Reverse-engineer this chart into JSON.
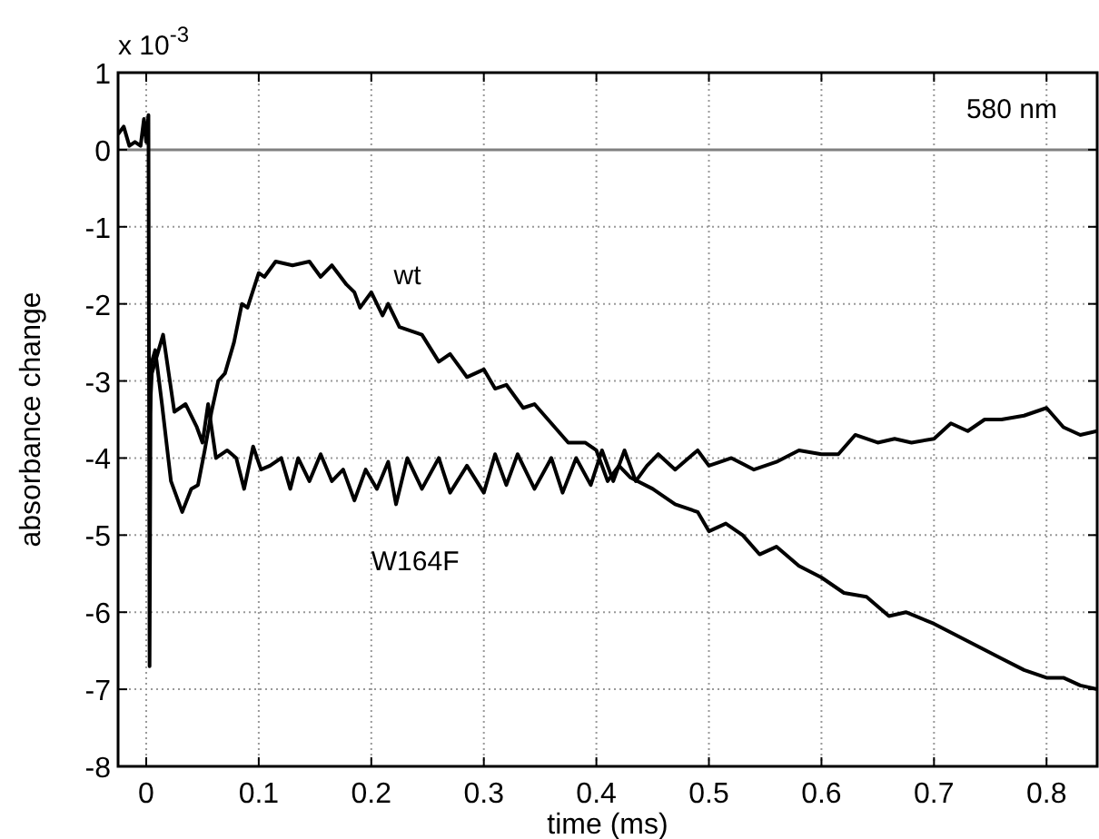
{
  "chart_data": {
    "type": "line",
    "xlabel": "time (ms)",
    "ylabel": "absorbance change",
    "annotations": [
      "x 10$^{-3}$",
      "580 nm"
    ],
    "xlim": [
      -0.025,
      0.845
    ],
    "xticks": [
      0,
      0.1,
      0.2,
      0.3,
      0.4,
      0.5,
      0.6,
      0.7,
      0.8
    ],
    "ylim": [
      -8,
      1
    ],
    "yticks": [
      -8,
      -7,
      -6,
      -5,
      -4,
      -3,
      -2,
      -1,
      0,
      1
    ],
    "grid": true,
    "line_style": "solid",
    "marker": "none",
    "ref_lines": [
      {
        "axis": "y",
        "value": 0,
        "color": "#808080"
      }
    ],
    "series": [
      {
        "name": "wt",
        "color": "#000000",
        "x": [
          -0.025,
          -0.02,
          -0.015,
          -0.01,
          -0.005,
          -0.002,
          0,
          0.002,
          0.003,
          0.004,
          0.008,
          0.014,
          0.022,
          0.032,
          0.04,
          0.046,
          0.052,
          0.058,
          0.064,
          0.07,
          0.078,
          0.085,
          0.09,
          0.1,
          0.105,
          0.115,
          0.13,
          0.145,
          0.155,
          0.165,
          0.178,
          0.185,
          0.19,
          0.2,
          0.21,
          0.215,
          0.225,
          0.235,
          0.245,
          0.26,
          0.27,
          0.285,
          0.3,
          0.31,
          0.32,
          0.335,
          0.345,
          0.36,
          0.375,
          0.39,
          0.4,
          0.41,
          0.42,
          0.43,
          0.45,
          0.47,
          0.49,
          0.5,
          0.515,
          0.53,
          0.545,
          0.56,
          0.58,
          0.6,
          0.62,
          0.64,
          0.66,
          0.675,
          0.7,
          0.72,
          0.74,
          0.76,
          0.78,
          0.8,
          0.815,
          0.83,
          0.845
        ],
        "values": [
          0.2,
          0.3,
          0.05,
          0.1,
          0.05,
          0.4,
          0.1,
          0.45,
          -6.7,
          -2.8,
          -2.6,
          -3.3,
          -4.3,
          -4.7,
          -4.4,
          -4.35,
          -3.9,
          -3.4,
          -3.0,
          -2.9,
          -2.5,
          -2.0,
          -2.05,
          -1.6,
          -1.65,
          -1.45,
          -1.5,
          -1.45,
          -1.65,
          -1.5,
          -1.75,
          -1.85,
          -2.05,
          -1.85,
          -2.15,
          -2.0,
          -2.3,
          -2.35,
          -2.4,
          -2.75,
          -2.65,
          -2.95,
          -2.85,
          -3.1,
          -3.05,
          -3.35,
          -3.3,
          -3.55,
          -3.8,
          -3.8,
          -3.9,
          -4.3,
          -4.1,
          -4.25,
          -4.4,
          -4.6,
          -4.7,
          -4.95,
          -4.85,
          -5.0,
          -5.25,
          -5.15,
          -5.4,
          -5.55,
          -5.75,
          -5.8,
          -6.05,
          -6.0,
          -6.15,
          -6.3,
          -6.45,
          -6.6,
          -6.75,
          -6.85,
          -6.85,
          -6.95,
          -7.0
        ]
      },
      {
        "name": "W164F",
        "color": "#000000",
        "x": [
          0.003,
          0.005,
          0.015,
          0.025,
          0.035,
          0.045,
          0.05,
          0.055,
          0.062,
          0.072,
          0.08,
          0.087,
          0.095,
          0.102,
          0.11,
          0.12,
          0.128,
          0.135,
          0.145,
          0.155,
          0.165,
          0.175,
          0.185,
          0.195,
          0.205,
          0.215,
          0.222,
          0.232,
          0.245,
          0.26,
          0.27,
          0.285,
          0.3,
          0.31,
          0.32,
          0.33,
          0.345,
          0.36,
          0.37,
          0.382,
          0.395,
          0.405,
          0.415,
          0.425,
          0.435,
          0.445,
          0.455,
          0.47,
          0.49,
          0.5,
          0.52,
          0.54,
          0.56,
          0.58,
          0.6,
          0.615,
          0.63,
          0.65,
          0.665,
          0.68,
          0.7,
          0.715,
          0.73,
          0.745,
          0.76,
          0.78,
          0.8,
          0.815,
          0.83,
          0.845
        ],
        "values": [
          -3.5,
          -2.9,
          -2.4,
          -3.4,
          -3.3,
          -3.6,
          -3.8,
          -3.3,
          -4.0,
          -3.9,
          -4.0,
          -4.4,
          -3.85,
          -4.15,
          -4.1,
          -4.0,
          -4.4,
          -4.0,
          -4.3,
          -3.95,
          -4.3,
          -4.15,
          -4.55,
          -4.15,
          -4.4,
          -4.05,
          -4.6,
          -4.0,
          -4.4,
          -4.0,
          -4.45,
          -4.1,
          -4.45,
          -3.95,
          -4.35,
          -3.95,
          -4.4,
          -4.0,
          -4.45,
          -4.0,
          -4.35,
          -3.9,
          -4.3,
          -3.9,
          -4.3,
          -4.1,
          -3.95,
          -4.15,
          -3.9,
          -4.1,
          -4.0,
          -4.15,
          -4.05,
          -3.9,
          -3.95,
          -3.95,
          -3.7,
          -3.8,
          -3.75,
          -3.8,
          -3.75,
          -3.55,
          -3.65,
          -3.5,
          -3.5,
          -3.45,
          -3.35,
          -3.6,
          -3.7,
          -3.65
        ]
      }
    ]
  }
}
